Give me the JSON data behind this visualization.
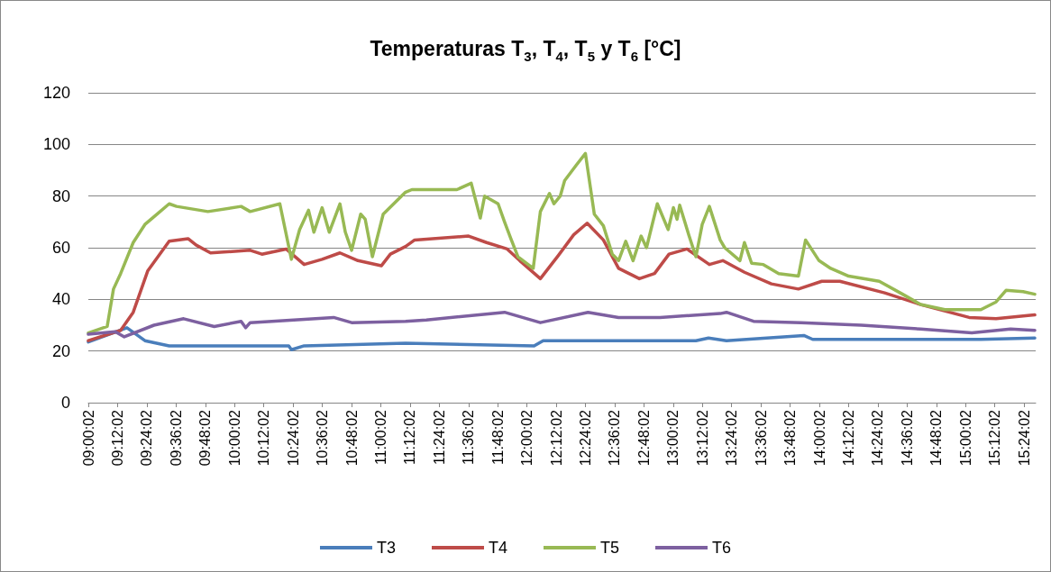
{
  "chart_data": {
    "type": "line",
    "title": "Temperaturas T$_{3}$, T$_{4}$, T$_{5}$ y T$_{6}$ [°C]",
    "xlim": [
      9,
      15.48
    ],
    "xticks": [
      {
        "value": 9.0006,
        "label": "09:00:02"
      },
      {
        "value": 9.2006,
        "label": "09:12:02"
      },
      {
        "value": 9.4006,
        "label": "09:24:02"
      },
      {
        "value": 9.6006,
        "label": "09:36:02"
      },
      {
        "value": 9.8006,
        "label": "09:48:02"
      },
      {
        "value": 10.0006,
        "label": "10:00:02"
      },
      {
        "value": 10.2006,
        "label": "10:12:02"
      },
      {
        "value": 10.4006,
        "label": "10:24:02"
      },
      {
        "value": 10.6006,
        "label": "10:36:02"
      },
      {
        "value": 10.8006,
        "label": "10:48:02"
      },
      {
        "value": 11.0006,
        "label": "11:00:02"
      },
      {
        "value": 11.2006,
        "label": "11:12:02"
      },
      {
        "value": 11.4006,
        "label": "11:24:02"
      },
      {
        "value": 11.6006,
        "label": "11:36:02"
      },
      {
        "value": 11.8006,
        "label": "11:48:02"
      },
      {
        "value": 12.0006,
        "label": "12:00:02"
      },
      {
        "value": 12.2006,
        "label": "12:12:02"
      },
      {
        "value": 12.4006,
        "label": "12:24:02"
      },
      {
        "value": 12.6006,
        "label": "12:36:02"
      },
      {
        "value": 12.8006,
        "label": "12:48:02"
      },
      {
        "value": 13.0006,
        "label": "13:00:02"
      },
      {
        "value": 13.2006,
        "label": "13:12:02"
      },
      {
        "value": 13.4006,
        "label": "13:24:02"
      },
      {
        "value": 13.6006,
        "label": "13:36:02"
      },
      {
        "value": 13.8006,
        "label": "13:48:02"
      },
      {
        "value": 14.0006,
        "label": "14:00:02"
      },
      {
        "value": 14.2006,
        "label": "14:12:02"
      },
      {
        "value": 14.4006,
        "label": "14:24:02"
      },
      {
        "value": 14.6006,
        "label": "14:36:02"
      },
      {
        "value": 14.8006,
        "label": "14:48:02"
      },
      {
        "value": 15.0006,
        "label": "15:00:02"
      },
      {
        "value": 15.2006,
        "label": "15:12:02"
      },
      {
        "value": 15.4006,
        "label": "15:24:02"
      }
    ],
    "ylim": [
      0,
      120
    ],
    "yticks": [
      0,
      20,
      40,
      60,
      80,
      100,
      120
    ],
    "grid": "y",
    "legend": "bottom",
    "marker": "none",
    "line_style": "solid",
    "series": [
      {
        "name": "T3",
        "color": "#4a7ebb",
        "x": [
          9.0,
          9.264,
          9.387,
          9.553,
          10.371,
          10.389,
          10.476,
          11.17,
          12.049,
          12.111,
          13.156,
          13.242,
          13.365,
          13.894,
          13.955,
          15.105,
          15.474
        ],
        "values": [
          23.5,
          29,
          24,
          22,
          22,
          20.5,
          22,
          23,
          22,
          24,
          24,
          25,
          24,
          26,
          24.5,
          24.5,
          25
        ]
      },
      {
        "name": "T4",
        "color": "#be4b48",
        "x": [
          9.0,
          9.221,
          9.307,
          9.406,
          9.553,
          9.682,
          9.738,
          9.836,
          10.107,
          10.187,
          10.353,
          10.476,
          10.599,
          10.721,
          10.844,
          11.004,
          11.066,
          11.17,
          11.232,
          11.601,
          11.724,
          11.865,
          11.951,
          12.092,
          12.215,
          12.32,
          12.412,
          12.523,
          12.627,
          12.769,
          12.873,
          12.972,
          13.095,
          13.248,
          13.34,
          13.488,
          13.672,
          13.857,
          14.017,
          14.14,
          14.447,
          14.693,
          15.025,
          15.209,
          15.474
        ],
        "values": [
          24,
          28,
          35,
          51,
          62.5,
          63.5,
          61,
          58,
          59,
          57.5,
          59.5,
          53.5,
          55.5,
          58,
          55,
          53,
          57.5,
          60.5,
          63,
          64.5,
          62,
          59.5,
          55,
          48,
          57,
          65,
          69.5,
          63,
          52,
          48,
          50,
          57.5,
          59.5,
          53.5,
          55,
          50.5,
          46,
          44,
          47,
          47,
          42.5,
          38,
          33,
          32.5,
          34
        ]
      },
      {
        "name": "T5",
        "color": "#98b954",
        "x": [
          9.0,
          9.129,
          9.172,
          9.221,
          9.307,
          9.387,
          9.449,
          9.553,
          9.603,
          9.818,
          10.045,
          10.107,
          10.31,
          10.389,
          10.445,
          10.506,
          10.543,
          10.599,
          10.648,
          10.721,
          10.758,
          10.801,
          10.863,
          10.894,
          10.943,
          11.017,
          11.17,
          11.213,
          11.521,
          11.619,
          11.681,
          11.711,
          11.803,
          11.847,
          11.89,
          11.939,
          12.043,
          12.092,
          12.154,
          12.185,
          12.228,
          12.258,
          12.338,
          12.4,
          12.461,
          12.523,
          12.584,
          12.627,
          12.676,
          12.726,
          12.781,
          12.818,
          12.892,
          12.966,
          13.002,
          13.027,
          13.045,
          13.107,
          13.156,
          13.199,
          13.248,
          13.322,
          13.353,
          13.457,
          13.488,
          13.537,
          13.617,
          13.722,
          13.857,
          13.906,
          13.998,
          14.078,
          14.201,
          14.41,
          14.57,
          14.693,
          14.859,
          15.105,
          15.209,
          15.277,
          15.394,
          15.474
        ],
        "values": [
          27,
          29.5,
          44,
          50,
          62,
          69,
          72,
          77,
          76,
          74,
          76,
          74,
          77,
          55.5,
          67,
          74.5,
          66,
          75.5,
          66,
          77,
          66,
          59,
          73,
          71,
          56.5,
          73,
          81.5,
          82.5,
          82.5,
          85,
          71.5,
          80,
          77,
          70,
          63.5,
          56.5,
          52,
          74,
          81,
          77,
          80,
          86,
          92,
          96.5,
          73,
          68.5,
          57.5,
          55,
          62.5,
          55,
          64.5,
          60,
          77,
          67,
          75.5,
          71,
          76.5,
          65,
          56.5,
          69,
          76,
          63,
          60,
          55,
          62,
          54,
          53.5,
          50,
          49,
          63,
          55,
          52,
          49,
          47,
          42,
          38,
          36,
          36,
          39,
          43.5,
          43,
          42
        ]
      },
      {
        "name": "T6",
        "color": "#7d60a0",
        "x": [
          9.0,
          9.184,
          9.246,
          9.449,
          9.652,
          9.861,
          10.045,
          10.076,
          10.107,
          10.678,
          10.801,
          11.17,
          11.312,
          11.847,
          12.092,
          12.418,
          12.627,
          12.91,
          13.322,
          13.365,
          13.55,
          13.875,
          14.287,
          14.693,
          15.043,
          15.308,
          15.474
        ],
        "values": [
          26.5,
          27.5,
          25.5,
          30,
          32.5,
          29.5,
          31.5,
          29,
          31,
          33,
          31,
          31.5,
          32,
          35,
          31,
          35,
          33,
          33,
          34.5,
          35,
          31.5,
          31,
          30,
          28.5,
          27,
          28.5,
          28
        ]
      }
    ]
  }
}
